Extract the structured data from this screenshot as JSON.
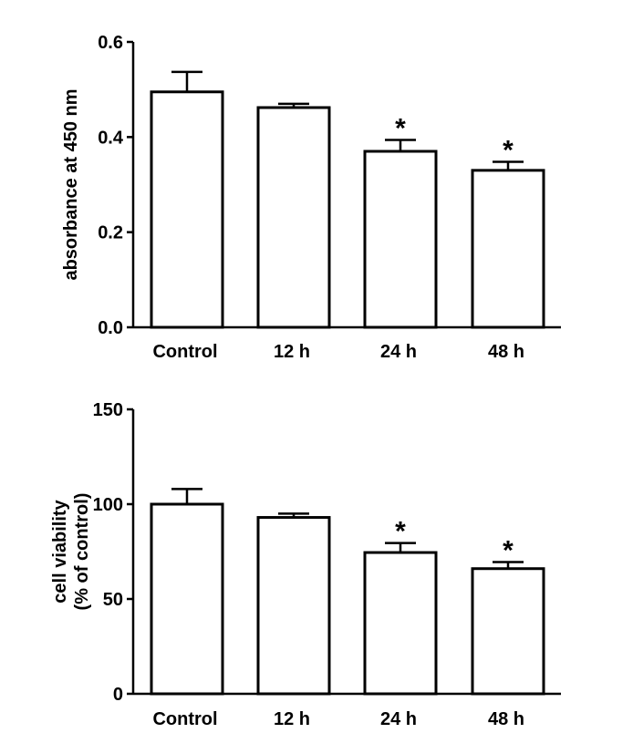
{
  "chart_data": [
    {
      "type": "bar",
      "categories": [
        "Control",
        "12 h",
        "24 h",
        "48 h"
      ],
      "values": [
        0.495,
        0.462,
        0.37,
        0.33
      ],
      "errors": [
        0.042,
        0.008,
        0.024,
        0.018
      ],
      "significance": [
        "",
        "",
        "*",
        "*"
      ],
      "title": "",
      "xlabel": "",
      "ylabel_lines": [
        "absorbance at 450 nm"
      ],
      "ylim": [
        0,
        0.6
      ],
      "yticks": [
        0.0,
        0.2,
        0.4,
        0.6
      ],
      "ytick_labels": [
        "0.0",
        "0.2",
        "0.4",
        "0.6"
      ],
      "bar_fill": "#ffffff",
      "bar_stroke": "#000000",
      "grid": false,
      "legend": "none"
    },
    {
      "type": "bar",
      "categories": [
        "Control",
        "12 h",
        "24 h",
        "48 h"
      ],
      "values": [
        100,
        93,
        74.5,
        66
      ],
      "errors": [
        8,
        2,
        5,
        3.5
      ],
      "significance": [
        "",
        "",
        "*",
        "*"
      ],
      "title": "",
      "xlabel": "",
      "ylabel_lines": [
        "cell viability",
        "(% of control)"
      ],
      "ylim": [
        0,
        150
      ],
      "yticks": [
        0,
        50,
        100,
        150
      ],
      "ytick_labels": [
        "0",
        "50",
        "100",
        "150"
      ],
      "bar_fill": "#ffffff",
      "bar_stroke": "#000000",
      "grid": false,
      "legend": "none"
    }
  ]
}
